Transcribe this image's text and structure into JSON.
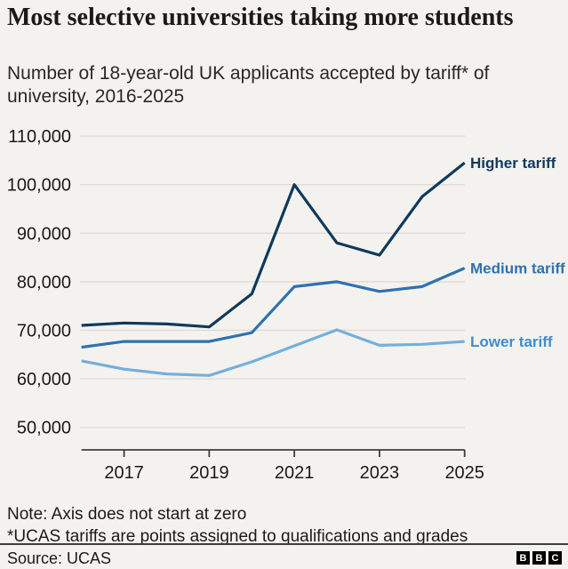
{
  "header": {
    "title": "Most selective universities taking more students",
    "subtitle": "Number of 18-year-old UK applicants accepted by tariff* of university, 2016-2025"
  },
  "chart_data": {
    "type": "line",
    "x": [
      2016,
      2017,
      2018,
      2019,
      2020,
      2021,
      2022,
      2023,
      2024,
      2025
    ],
    "series": [
      {
        "name": "Higher tariff",
        "color": "#0f3a5d",
        "label_color": "#0f3a5d",
        "values": [
          71000,
          71500,
          71300,
          70700,
          77500,
          100000,
          88000,
          85500,
          97500,
          104500
        ]
      },
      {
        "name": "Medium tariff",
        "color": "#2d72b0",
        "label_color": "#2d72b0",
        "values": [
          66500,
          67700,
          67700,
          67700,
          69500,
          79000,
          80000,
          78000,
          79000,
          82800
        ]
      },
      {
        "name": "Lower tariff",
        "color": "#74b0db",
        "label_color": "#3e8ecd",
        "values": [
          63700,
          62000,
          61000,
          60700,
          63500,
          66800,
          70100,
          66900,
          67100,
          67700
        ]
      }
    ],
    "ylim": [
      50000,
      110000
    ],
    "yticks": [
      50000,
      60000,
      70000,
      80000,
      90000,
      100000,
      110000
    ],
    "xticks": [
      2017,
      2019,
      2021,
      2023,
      2025
    ],
    "title": "Most selective universities taking more students",
    "xlabel": "",
    "ylabel": "",
    "grid": true,
    "legend_position": "right-of-line-ends",
    "axis_note": "Axis does not start at zero"
  },
  "notes": {
    "line1": "Note: Axis does not start at zero",
    "line2": "*UCAS tariffs are points assigned to qualifications and grades"
  },
  "footer": {
    "source": "Source: UCAS",
    "logo_letters": [
      "B",
      "B",
      "C"
    ]
  },
  "theme": {
    "background": "#f4f2ef",
    "text": "#1a1a1a",
    "grid": "#e0ddd8",
    "axis": "#3d3d3d"
  }
}
